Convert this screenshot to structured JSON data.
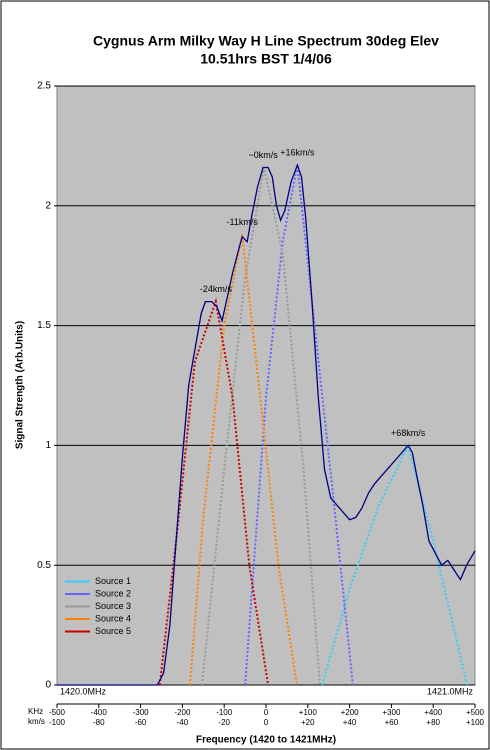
{
  "chart_data": {
    "type": "line",
    "title": "Cygnus Arm Milky Way H Line Spectrum 30deg Elev",
    "subtitle": "10.51hrs BST 1/4/06",
    "y_label": "Signal Strength (Arb.Units)",
    "x_label": "Frequency (1420 to 1421MHz)",
    "x_start_label": "1420.0MHz",
    "x_end_label": "1421.0MHz",
    "x_unit_label": "KHz",
    "x2_unit_label": "km/s",
    "xlim": [
      -500,
      500
    ],
    "ylim": [
      0,
      2.5
    ],
    "yticks": [
      0,
      0.5,
      1,
      1.5,
      2,
      2.5
    ],
    "xticks": [
      -500,
      -400,
      -300,
      -200,
      -100,
      0,
      {
        "value": 100,
        "label": "+100"
      },
      {
        "value": 200,
        "label": "+200"
      },
      {
        "value": 300,
        "label": "+300"
      },
      {
        "value": 400,
        "label": "+400"
      },
      {
        "value": 500,
        "label": "+500"
      }
    ],
    "x2ticks": [
      {
        "value": -500,
        "label": "-100"
      },
      {
        "value": -400,
        "label": "-80"
      },
      {
        "value": -300,
        "label": "-60"
      },
      {
        "value": -200,
        "label": "-40"
      },
      {
        "value": -100,
        "label": "-20"
      },
      {
        "value": 0,
        "label": "0"
      },
      {
        "value": 100,
        "label": "+20"
      },
      {
        "value": 200,
        "label": "+40"
      },
      {
        "value": 300,
        "label": "+60"
      },
      {
        "value": 400,
        "label": "+80"
      },
      {
        "value": 500,
        "label": "+100"
      }
    ],
    "grid": true,
    "legend": "lower left",
    "spectrum": {
      "color": "#000080",
      "x": [
        -500,
        -260,
        -245,
        -230,
        -215,
        -200,
        -185,
        -175,
        -165,
        -155,
        -145,
        -130,
        -118,
        -105,
        -95,
        -80,
        -65,
        -57,
        -45,
        -35,
        -20,
        -7,
        5,
        15,
        25,
        35,
        45,
        60,
        75,
        85,
        95,
        110,
        125,
        140,
        155,
        170,
        185,
        200,
        215,
        230,
        245,
        260,
        280,
        300,
        320,
        340,
        350,
        360,
        375,
        390,
        405,
        420,
        435,
        450,
        465,
        480,
        500
      ],
      "values": [
        0,
        0,
        0.05,
        0.25,
        0.6,
        0.95,
        1.25,
        1.35,
        1.45,
        1.55,
        1.6,
        1.6,
        1.58,
        1.52,
        1.6,
        1.72,
        1.82,
        1.87,
        1.85,
        1.95,
        2.08,
        2.16,
        2.16,
        2.12,
        2.0,
        1.94,
        1.98,
        2.1,
        2.17,
        2.12,
        1.95,
        1.6,
        1.2,
        0.9,
        0.78,
        0.75,
        0.72,
        0.69,
        0.7,
        0.74,
        0.8,
        0.84,
        0.88,
        0.92,
        0.96,
        1.0,
        0.97,
        0.88,
        0.75,
        0.6,
        0.55,
        0.5,
        0.52,
        0.48,
        0.44,
        0.5,
        0.56
      ]
    },
    "series": [
      {
        "name": "Source 1",
        "color": "#33ccff",
        "x": [
          134,
          200,
          270,
          340,
          400,
          481
        ],
        "values": [
          0,
          0.4,
          0.75,
          1.0,
          0.6,
          0
        ]
      },
      {
        "name": "Source 2",
        "color": "#6666ff",
        "x": [
          -50,
          0,
          40,
          75,
          110,
          160,
          208
        ],
        "values": [
          0,
          1.2,
          1.85,
          2.17,
          1.6,
          0.8,
          0
        ]
      },
      {
        "name": "Source 3",
        "color": "#999999",
        "x": [
          -153,
          -100,
          -50,
          -5,
          40,
          90,
          129
        ],
        "values": [
          0,
          0.9,
          1.7,
          2.16,
          1.8,
          0.9,
          0
        ]
      },
      {
        "name": "Source 4",
        "color": "#ff8000",
        "x": [
          -182,
          -150,
          -100,
          -57,
          -20,
          30,
          74
        ],
        "values": [
          0,
          0.7,
          1.5,
          1.88,
          1.3,
          0.5,
          0
        ]
      },
      {
        "name": "Source 5",
        "color": "#cc0000",
        "x": [
          -254,
          -215,
          -170,
          -120,
          -80,
          -40,
          5
        ],
        "values": [
          0,
          0.6,
          1.35,
          1.6,
          1.2,
          0.5,
          0
        ]
      }
    ],
    "annotations": [
      {
        "text": "-24km/s",
        "x": -120,
        "y": 1.6
      },
      {
        "text": "-11km/s",
        "x": -57,
        "y": 1.88
      },
      {
        "text": "~0km/s",
        "x": -7,
        "y": 2.16
      },
      {
        "text": "+16km/s",
        "x": 75,
        "y": 2.17
      },
      {
        "text": "+68km/s",
        "x": 340,
        "y": 1.0
      }
    ]
  }
}
